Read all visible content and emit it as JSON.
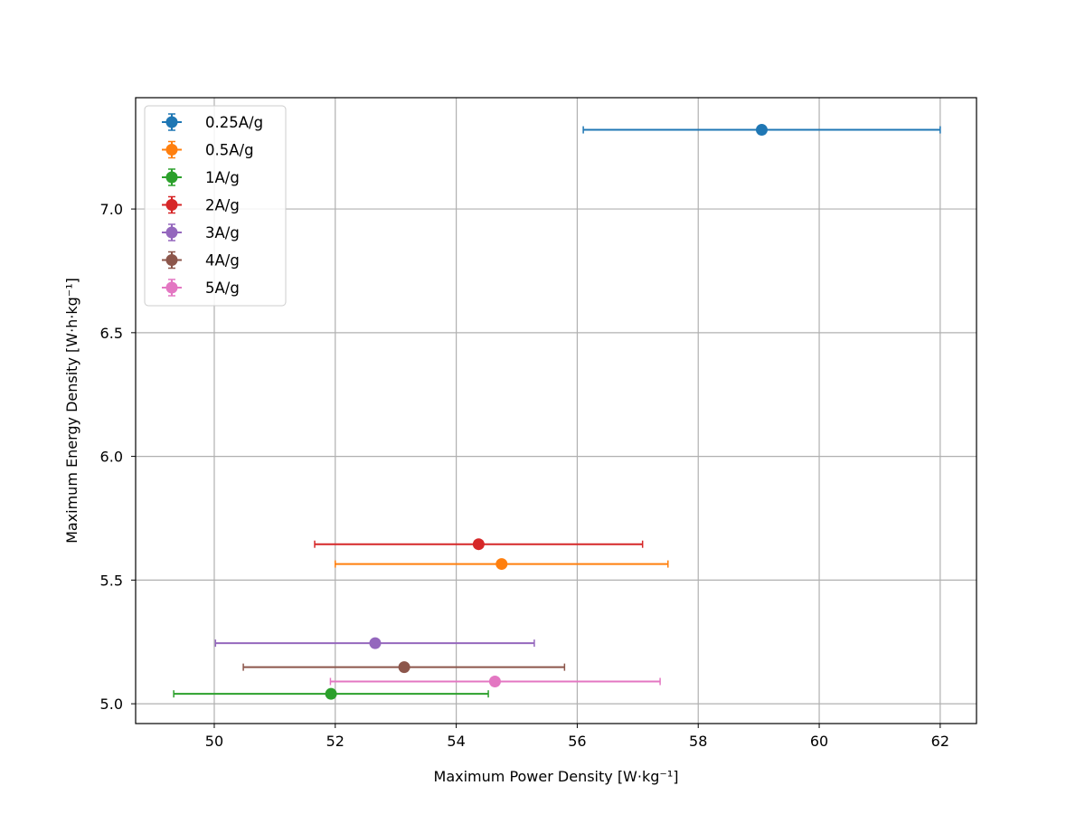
{
  "chart_data": {
    "type": "scatter",
    "title": "",
    "xlabel": "Maximum Power Density [W·kg⁻¹]",
    "ylabel": "Maximum Energy Density [W·h·kg⁻¹]",
    "xlim": [
      48.7,
      62.6
    ],
    "ylim": [
      4.92,
      7.45
    ],
    "xticks": [
      50,
      52,
      54,
      56,
      58,
      60,
      62
    ],
    "yticks": [
      5.0,
      5.5,
      6.0,
      6.5,
      7.0
    ],
    "xtick_labels": [
      "50",
      "52",
      "54",
      "56",
      "58",
      "60",
      "62"
    ],
    "ytick_labels": [
      "5.0",
      "5.5",
      "6.0",
      "6.5",
      "7.0"
    ],
    "grid": true,
    "legend_position": "top-left",
    "series": [
      {
        "name": "0.25A/g",
        "color": "#1f77b4",
        "x": 59.05,
        "y": 7.32,
        "xerr_low": 56.1,
        "xerr_high": 62.0
      },
      {
        "name": "0.5A/g",
        "color": "#ff7f0e",
        "x": 54.75,
        "y": 5.565,
        "xerr_low": 52.0,
        "xerr_high": 57.5
      },
      {
        "name": "1A/g",
        "color": "#2ca02c",
        "x": 51.93,
        "y": 5.04,
        "xerr_low": 49.33,
        "xerr_high": 54.53
      },
      {
        "name": "2A/g",
        "color": "#d62728",
        "x": 54.37,
        "y": 5.645,
        "xerr_low": 51.66,
        "xerr_high": 57.08
      },
      {
        "name": "3A/g",
        "color": "#9467bd",
        "x": 52.66,
        "y": 5.245,
        "xerr_low": 50.02,
        "xerr_high": 55.29
      },
      {
        "name": "4A/g",
        "color": "#8c564b",
        "x": 53.14,
        "y": 5.148,
        "xerr_low": 50.48,
        "xerr_high": 55.79
      },
      {
        "name": "5A/g",
        "color": "#e377c2",
        "x": 54.64,
        "y": 5.09,
        "xerr_low": 51.92,
        "xerr_high": 57.37
      }
    ]
  }
}
